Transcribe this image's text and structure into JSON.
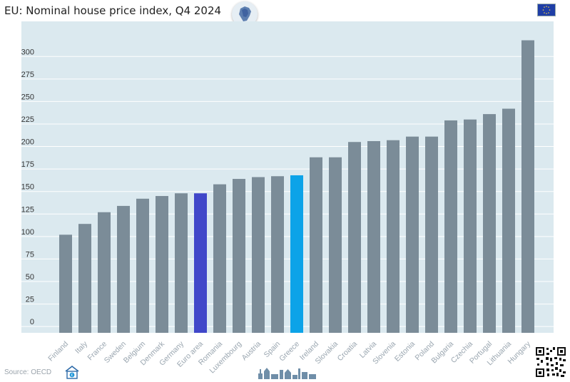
{
  "chart_data": {
    "type": "bar",
    "title": "EU: Nominal house price index, Q4 2024",
    "categories": [
      "Finland",
      "Italy",
      "France",
      "Sweden",
      "Belgium",
      "Denmark",
      "Germany",
      "Euro area",
      "Romania",
      "Luxembourg",
      "Austria",
      "Spain",
      "Greece",
      "Ireland",
      "Slovakia",
      "Croatia",
      "Latvia",
      "Slovenia",
      "Estonia",
      "Poland",
      "Bulgaria",
      "Czechia",
      "Portugal",
      "Lithuania",
      "Hungary"
    ],
    "values": [
      102,
      114,
      127,
      134,
      142,
      145,
      148,
      148,
      158,
      164,
      166,
      167,
      168,
      188,
      188,
      205,
      206,
      207,
      211,
      211,
      229,
      230,
      236,
      242,
      318
    ],
    "yticks": [
      0,
      25,
      50,
      75,
      100,
      125,
      150,
      175,
      200,
      225,
      250,
      275,
      300
    ],
    "ylim": [
      -7,
      339
    ],
    "grid": true,
    "highlight": {
      "Euro area": "#4047c9",
      "Greece": "#0ca3e8"
    },
    "colors": {
      "bar": "#7b8c98",
      "plot_bg": "#dbe9ef",
      "grid": "#ffffff",
      "tick": "#333333",
      "xtick": "#9aa6b0"
    }
  },
  "footer": {
    "source": "Source: OECD"
  },
  "icons": {
    "map": "eu-map-icon",
    "flag": "eu-flag-icon",
    "home": "house-euro-icon",
    "skyline": "city-skyline-icon",
    "qr": "qr-code-icon"
  }
}
